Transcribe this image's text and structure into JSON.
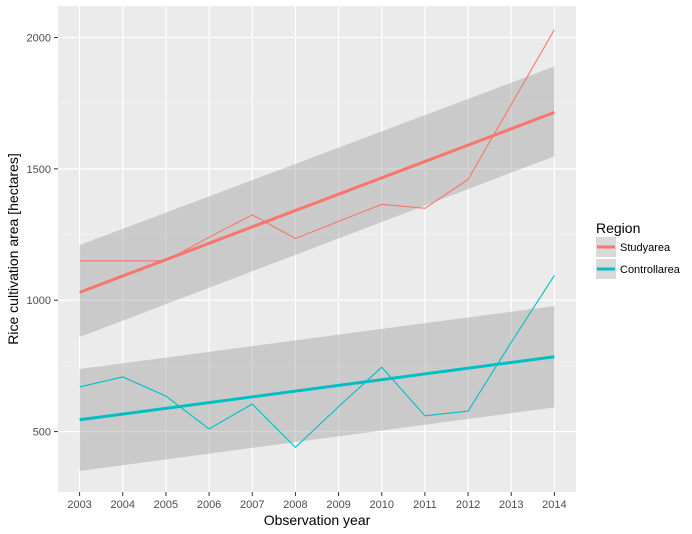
{
  "chart_data": {
    "type": "line",
    "title": "",
    "xlabel": "Observation year",
    "ylabel": "Rice cultivation area [hectares]",
    "x": [
      2003,
      2004,
      2005,
      2006,
      2007,
      2008,
      2009,
      2010,
      2011,
      2012,
      2013,
      2014
    ],
    "xlim": [
      2002.5,
      2014.5
    ],
    "ylim": [
      270,
      2120
    ],
    "yticks": [
      500,
      1000,
      1500,
      2000
    ],
    "grid": true,
    "legend": {
      "title": "Region",
      "position": "right"
    },
    "series": [
      {
        "name": "Studyarea",
        "color": "#F8766D",
        "values": [
          1150,
          1150,
          1150,
          1240,
          1325,
          1235,
          1300,
          1365,
          1350,
          1460,
          1745,
          2030
        ],
        "trend": {
          "start": 1030,
          "end": 1715
        },
        "band": {
          "lower": [
            860,
            1548
          ],
          "upper": [
            1210,
            1890
          ]
        }
      },
      {
        "name": "Controllarea",
        "color": "#00BFC4",
        "values": [
          670,
          708,
          635,
          510,
          605,
          440,
          595,
          745,
          560,
          578,
          840,
          1095
        ],
        "trend": {
          "start": 545,
          "end": 785
        },
        "band": {
          "lower": [
            350,
            592
          ],
          "upper": [
            738,
            978
          ]
        }
      }
    ]
  }
}
